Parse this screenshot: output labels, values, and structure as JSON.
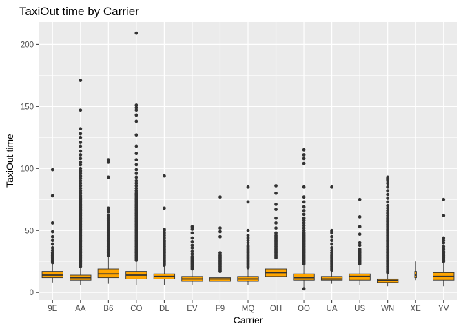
{
  "chart_data": {
    "type": "boxplot",
    "title": "TaxiOut time by Carrier",
    "xlabel": "Carrier",
    "ylabel": "TaxiOut time",
    "ylim": [
      -6,
      218
    ],
    "yticks": [
      0,
      50,
      100,
      150,
      200
    ],
    "grid": true,
    "legend": "none",
    "colors": {
      "panel": "#EBEBEB",
      "grid_major": "#FFFFFF",
      "box_fill": "#FFA500",
      "box_line": "#333333",
      "point": "#333333"
    },
    "categories": [
      "9E",
      "AA",
      "B6",
      "CO",
      "DL",
      "EV",
      "F9",
      "MQ",
      "OH",
      "OO",
      "UA",
      "US",
      "WN",
      "XE",
      "YV"
    ],
    "boxes": [
      {
        "carrier": "9E",
        "lower": 8,
        "q1": 12,
        "median": 14,
        "q3": 17,
        "upper": 23,
        "outliers": [
          24,
          25,
          26,
          27,
          28,
          29,
          30,
          31,
          32,
          34,
          36,
          39,
          42,
          45,
          49,
          56,
          78,
          99
        ]
      },
      {
        "carrier": "AA",
        "lower": 6,
        "q1": 10,
        "median": 12,
        "q3": 14,
        "upper": 20,
        "outliers": [
          21,
          22,
          23,
          24,
          25,
          26,
          27,
          28,
          29,
          30,
          31,
          32,
          33,
          34,
          35,
          36,
          37,
          38,
          39,
          40,
          41,
          42,
          43,
          44,
          45,
          46,
          47,
          48,
          49,
          50,
          51,
          52,
          53,
          54,
          55,
          56,
          57,
          58,
          59,
          60,
          61,
          62,
          63,
          64,
          65,
          66,
          67,
          68,
          69,
          70,
          71,
          72,
          73,
          74,
          75,
          76,
          77,
          78,
          80,
          82,
          84,
          86,
          88,
          90,
          92,
          94,
          96,
          98,
          100,
          103,
          105,
          108,
          111,
          114,
          118,
          121,
          125,
          128,
          132,
          147,
          171
        ]
      },
      {
        "carrier": "B6",
        "lower": 7,
        "q1": 12,
        "median": 15,
        "q3": 19,
        "upper": 29,
        "outliers": [
          30,
          31,
          32,
          33,
          34,
          35,
          36,
          37,
          38,
          39,
          40,
          41,
          42,
          43,
          44,
          45,
          46,
          47,
          48,
          50,
          52,
          54,
          56,
          58,
          60,
          62,
          65,
          67,
          68,
          93,
          105,
          107
        ]
      },
      {
        "carrier": "CO",
        "lower": 6,
        "q1": 11,
        "median": 14,
        "q3": 17,
        "upper": 25,
        "outliers": [
          26,
          27,
          28,
          29,
          30,
          31,
          32,
          33,
          34,
          35,
          36,
          37,
          38,
          39,
          40,
          41,
          42,
          43,
          44,
          45,
          46,
          47,
          48,
          49,
          50,
          51,
          52,
          53,
          54,
          55,
          56,
          57,
          58,
          59,
          60,
          61,
          62,
          63,
          64,
          65,
          66,
          67,
          68,
          69,
          70,
          71,
          72,
          73,
          74,
          75,
          76,
          77,
          78,
          79,
          80,
          82,
          84,
          86,
          88,
          90,
          93,
          96,
          99,
          103,
          107,
          112,
          118,
          127,
          138,
          143,
          147,
          149,
          151,
          209
        ]
      },
      {
        "carrier": "DL",
        "lower": 6,
        "q1": 11,
        "median": 13,
        "q3": 15,
        "upper": 21,
        "outliers": [
          22,
          23,
          24,
          25,
          26,
          27,
          28,
          29,
          30,
          31,
          32,
          33,
          34,
          35,
          36,
          37,
          38,
          39,
          40,
          41,
          42,
          44,
          46,
          48,
          50,
          51,
          68,
          94
        ]
      },
      {
        "carrier": "EV",
        "lower": 6,
        "q1": 9,
        "median": 11,
        "q3": 13,
        "upper": 18,
        "outliers": [
          19,
          20,
          21,
          22,
          23,
          24,
          25,
          26,
          27,
          28,
          29,
          31,
          33,
          36,
          38,
          41,
          44,
          48,
          51,
          53
        ]
      },
      {
        "carrier": "F9",
        "lower": 6,
        "q1": 9,
        "median": 11,
        "q3": 12,
        "upper": 16,
        "outliers": [
          17,
          18,
          19,
          20,
          21,
          22,
          23,
          24,
          25,
          26,
          27,
          28,
          29,
          30,
          32,
          45,
          49,
          52,
          77
        ]
      },
      {
        "carrier": "MQ",
        "lower": 6,
        "q1": 9,
        "median": 11,
        "q3": 13,
        "upper": 19,
        "outliers": [
          20,
          21,
          22,
          23,
          24,
          25,
          26,
          27,
          28,
          29,
          30,
          31,
          32,
          33,
          34,
          35,
          36,
          37,
          38,
          40,
          42,
          44,
          46,
          50,
          73,
          85
        ]
      },
      {
        "carrier": "OH",
        "lower": 5,
        "q1": 13,
        "median": 16,
        "q3": 19,
        "upper": 27,
        "outliers": [
          28,
          29,
          30,
          31,
          32,
          33,
          34,
          35,
          36,
          37,
          38,
          39,
          40,
          41,
          42,
          43,
          44,
          45,
          46,
          48,
          52,
          56,
          60,
          67,
          71,
          80,
          86
        ]
      },
      {
        "carrier": "OO",
        "lower": 4,
        "q1": 10,
        "median": 12,
        "q3": 15,
        "upper": 22,
        "outliers": [
          3,
          23,
          24,
          25,
          26,
          27,
          28,
          29,
          30,
          31,
          32,
          33,
          34,
          35,
          36,
          37,
          38,
          39,
          40,
          41,
          42,
          43,
          44,
          45,
          46,
          47,
          48,
          50,
          52,
          54,
          56,
          58,
          60,
          63,
          66,
          69,
          73,
          77,
          85,
          104,
          108,
          111,
          115
        ]
      },
      {
        "carrier": "UA",
        "lower": 7,
        "q1": 10,
        "median": 11,
        "q3": 13,
        "upper": 17,
        "outliers": [
          18,
          19,
          20,
          21,
          22,
          23,
          24,
          25,
          26,
          27,
          28,
          29,
          30,
          32,
          34,
          36,
          39,
          42,
          45,
          48,
          49,
          50,
          85
        ]
      },
      {
        "carrier": "US",
        "lower": 6,
        "q1": 10,
        "median": 13,
        "q3": 15,
        "upper": 22,
        "outliers": [
          23,
          24,
          25,
          26,
          27,
          28,
          29,
          30,
          31,
          32,
          33,
          34,
          35,
          38,
          40,
          47,
          53,
          61,
          75
        ]
      },
      {
        "carrier": "WN",
        "lower": 5,
        "q1": 8,
        "median": 10,
        "q3": 11,
        "upper": 15,
        "outliers": [
          16,
          17,
          18,
          19,
          20,
          21,
          22,
          23,
          24,
          25,
          26,
          27,
          28,
          29,
          30,
          31,
          32,
          33,
          34,
          35,
          36,
          37,
          38,
          39,
          40,
          41,
          42,
          43,
          44,
          45,
          46,
          47,
          48,
          49,
          50,
          51,
          52,
          53,
          54,
          55,
          56,
          57,
          58,
          59,
          60,
          62,
          64,
          66,
          68,
          70,
          73,
          76,
          79,
          82,
          85,
          88,
          90,
          91,
          92,
          93
        ]
      },
      {
        "carrier": "XE",
        "lower": 10,
        "q1": 12,
        "median": 14,
        "q3": 17,
        "upper": 25,
        "outliers": []
      },
      {
        "carrier": "YV",
        "lower": 5,
        "q1": 10,
        "median": 13,
        "q3": 16,
        "upper": 24,
        "outliers": [
          25,
          26,
          27,
          28,
          29,
          30,
          31,
          32,
          33,
          35,
          37,
          40,
          42,
          44,
          62,
          75
        ]
      }
    ]
  }
}
